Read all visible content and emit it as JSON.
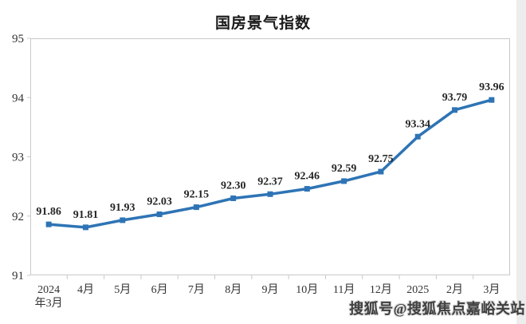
{
  "title": "国房景气指数",
  "watermark": {
    "text": "搜狐号@搜狐焦点嘉峪关站"
  },
  "chart_data": {
    "type": "line",
    "title": "国房景气指数",
    "categories": [
      "2024年3月",
      "4月",
      "5月",
      "6月",
      "7月",
      "8月",
      "9月",
      "10月",
      "11月",
      "12月",
      "2025",
      "2月",
      "3月"
    ],
    "tick_label_lines": [
      [
        "2024",
        "年3月"
      ],
      [
        "4月"
      ],
      [
        "5月"
      ],
      [
        "6月"
      ],
      [
        "7月"
      ],
      [
        "8月"
      ],
      [
        "9月"
      ],
      [
        "10月"
      ],
      [
        "11月"
      ],
      [
        "12月"
      ],
      [
        "2025"
      ],
      [
        "2月"
      ],
      [
        "3月"
      ]
    ],
    "values": [
      91.86,
      91.81,
      91.93,
      92.03,
      92.15,
      92.3,
      92.37,
      92.46,
      92.59,
      92.75,
      93.34,
      93.79,
      93.96
    ],
    "data_labels": [
      "91.86",
      "91.81",
      "91.93",
      "92.03",
      "92.15",
      "92.30",
      "92.37",
      "92.46",
      "92.59",
      "92.75",
      "93.34",
      "93.79",
      "93.96"
    ],
    "y_ticks": [
      91,
      92,
      93,
      94,
      95
    ],
    "ylim": [
      91,
      95
    ],
    "xlabel": "",
    "ylabel": "",
    "grid": false,
    "legend": "none",
    "line_color": "#2e74b5",
    "marker": "square",
    "axis_color": "#c9c9c9",
    "label_color": "#262626",
    "tick_text_color": "#333333"
  }
}
